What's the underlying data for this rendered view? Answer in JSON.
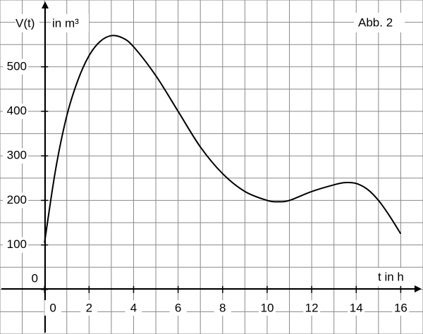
{
  "chart_data": {
    "type": "line",
    "y_label_left": "V(t)",
    "y_label_unit": "in m³",
    "x_label": "t in h",
    "annotation": "Abb. 2",
    "x": [
      0,
      0.5,
      1,
      1.5,
      2,
      2.5,
      3,
      3.5,
      4,
      5,
      6,
      7,
      8,
      9,
      10,
      10.5,
      11,
      12,
      13,
      13.5,
      14,
      14.5,
      15,
      15.5,
      16
    ],
    "series": [
      {
        "color": "#000000",
        "values": [
          105,
          270,
          390,
          470,
          525,
          557,
          570,
          565,
          545,
          480,
          400,
          320,
          260,
          220,
          200,
          197,
          200,
          220,
          235,
          240,
          238,
          225,
          200,
          165,
          125
        ]
      }
    ],
    "xlim": [
      -2,
      17
    ],
    "ylim": [
      -100,
      650
    ],
    "xticks": [
      0,
      2,
      4,
      6,
      8,
      10,
      12,
      14,
      16
    ],
    "yticks": [
      0,
      100,
      200,
      300,
      400,
      500
    ],
    "grid": true,
    "xgrid_step": 1,
    "ygrid_step": 50
  }
}
